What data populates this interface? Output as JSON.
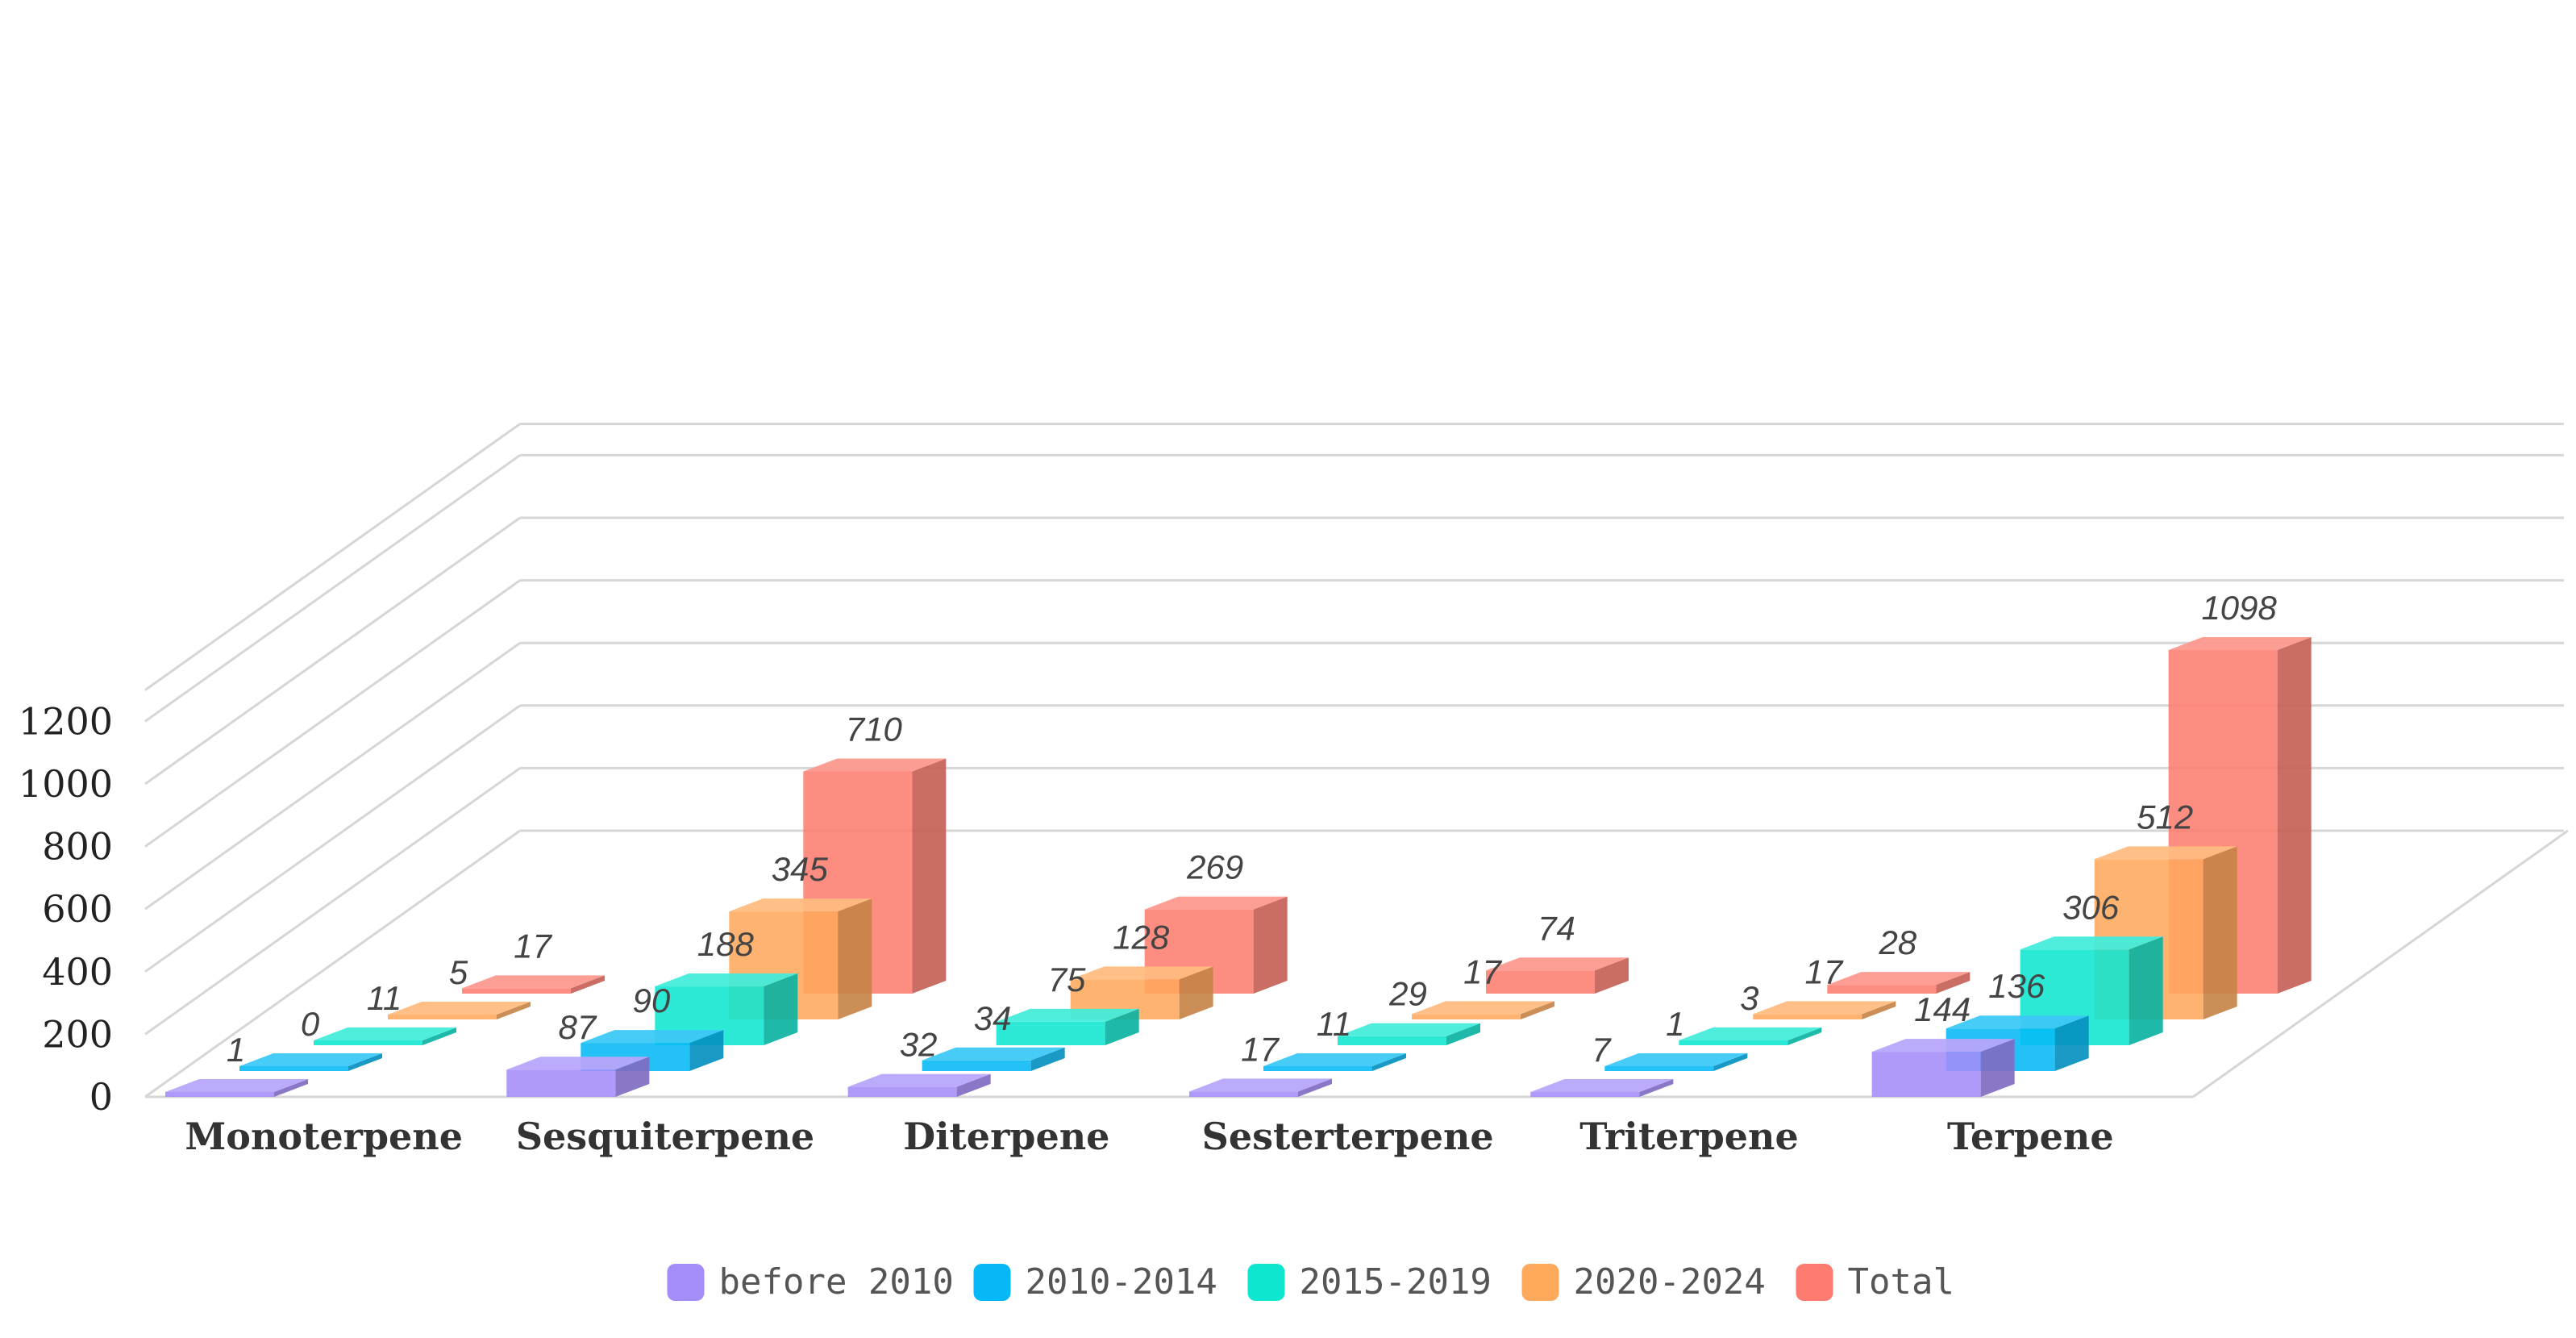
{
  "chart_data": {
    "type": "bar",
    "style": "3d-grouped",
    "categories": [
      "Monoterpene",
      "Sesquiterpene",
      "Diterpene",
      "Sesterterpene",
      "Triterpene",
      "Terpene"
    ],
    "series": [
      {
        "name": "before 2010",
        "color": "#a48cf9",
        "values": [
          1,
          87,
          32,
          17,
          7,
          144
        ]
      },
      {
        "name": "2010-2014",
        "color": "#06b8f5",
        "values": [
          0,
          90,
          34,
          11,
          1,
          136
        ]
      },
      {
        "name": "2015-2019",
        "color": "#0fe6d0",
        "values": [
          11,
          188,
          75,
          29,
          3,
          306
        ]
      },
      {
        "name": "2020-2024",
        "color": "#ffa95c",
        "values": [
          5,
          345,
          128,
          17,
          17,
          512
        ]
      },
      {
        "name": "Total",
        "color": "#fd7c6f",
        "values": [
          17,
          710,
          269,
          74,
          28,
          1098
        ]
      }
    ],
    "yticks": [
      "0",
      "200",
      "400",
      "600",
      "800",
      "1000",
      "1200"
    ],
    "ylim": [
      0,
      1300
    ],
    "title": "",
    "xlabel": "",
    "ylabel": "",
    "grid": true,
    "legend": "bottom-center"
  }
}
